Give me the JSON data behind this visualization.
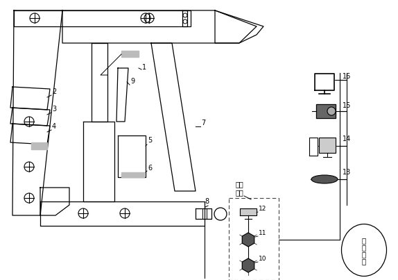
{
  "bg_color": "#ffffff",
  "line_color": "#000000",
  "chinese_labels": {
    "underground_chute_line1": "井下",
    "underground_chute_line2": "顺槽",
    "industrial_network_line1": "工",
    "industrial_network_line2": "业",
    "industrial_network_line3": "环",
    "industrial_network_line4": "网"
  }
}
